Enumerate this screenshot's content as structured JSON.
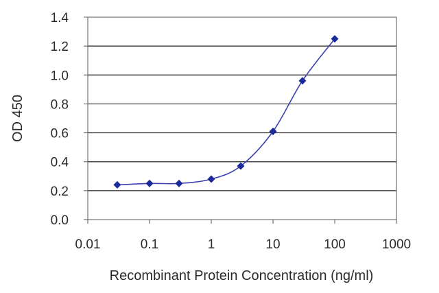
{
  "chart_data": {
    "type": "line",
    "title": "",
    "xlabel": "Recombinant Protein Concentration (ng/ml)",
    "ylabel": "OD 450",
    "x_scale": "log",
    "xlim": [
      0.01,
      1000
    ],
    "ylim": [
      0.0,
      1.4
    ],
    "x_ticks": [
      "0.01",
      "0.1",
      "1",
      "10",
      "100",
      "1000"
    ],
    "y_ticks": [
      "0.0",
      "0.2",
      "0.4",
      "0.6",
      "0.8",
      "1.0",
      "1.2",
      "1.4"
    ],
    "grid": "horizontal",
    "series": [
      {
        "x": [
          0.03,
          0.1,
          0.3,
          1,
          3,
          10,
          30,
          100
        ],
        "y": [
          0.24,
          0.25,
          0.25,
          0.28,
          0.37,
          0.61,
          0.96,
          1.25
        ]
      }
    ],
    "colors": {
      "line": "#3a40b0",
      "marker": "#1c2a99",
      "grid": "#222222",
      "axis": "#555555"
    }
  }
}
